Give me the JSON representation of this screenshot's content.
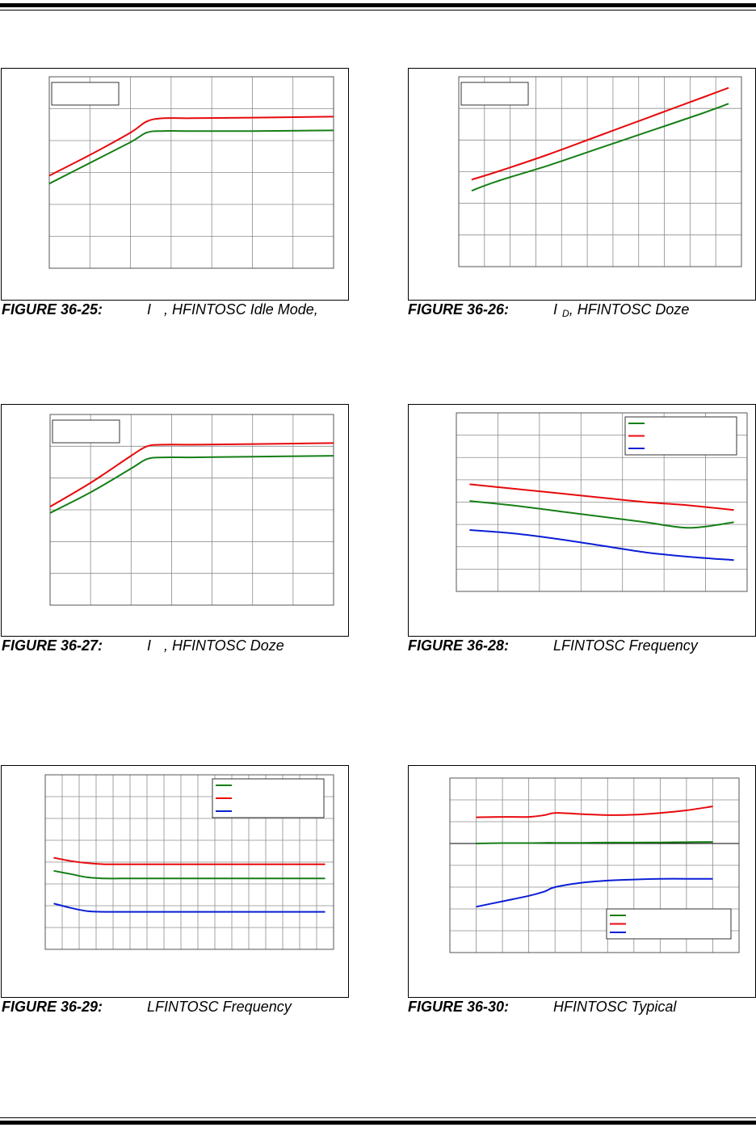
{
  "page": {
    "captions": [
      {
        "number": "FIGURE 36-25:",
        "pre": "I",
        "sub": "",
        "post": ", HFINTOSC Idle Mode,"
      },
      {
        "number": "FIGURE 36-26:",
        "pre": "I",
        "sub": "D",
        "post": ", HFINTOSC Doze"
      },
      {
        "number": "FIGURE 36-27:",
        "pre": "I",
        "sub": "",
        "post": ", HFINTOSC Doze"
      },
      {
        "number": "FIGURE 36-28:",
        "pre": "",
        "sub": "",
        "post": "LFINTOSC Frequency"
      },
      {
        "number": "FIGURE 36-29:",
        "pre": "",
        "sub": "",
        "post": "LFINTOSC Frequency"
      },
      {
        "number": "FIGURE 36-30:",
        "pre": "",
        "sub": "",
        "post": "HFINTOSC Typical"
      }
    ]
  },
  "colors": {
    "green": "#167f16",
    "red": "#e8090c",
    "blue": "#0a1ed6",
    "grid": "#8c8c8c"
  },
  "chart_data": [
    {
      "type": "line",
      "grid": true,
      "legend": "top-left",
      "legend_entries": [],
      "x": [
        0,
        1,
        2,
        2.4,
        2.8,
        3.5,
        5,
        7
      ],
      "xlim": [
        0,
        7
      ],
      "ylim": [
        0,
        6
      ],
      "x_divisions": 7,
      "y_divisions": 6,
      "series": [
        {
          "color": "red",
          "values": [
            2.9,
            3.55,
            4.25,
            4.6,
            4.7,
            4.7,
            4.72,
            4.75
          ]
        },
        {
          "color": "green",
          "values": [
            2.65,
            3.3,
            3.95,
            4.25,
            4.3,
            4.3,
            4.3,
            4.32
          ]
        }
      ]
    },
    {
      "type": "line",
      "grid": true,
      "legend": "top-left",
      "legend_entries": [],
      "x": [
        0,
        1,
        3,
        5,
        7,
        9,
        10
      ],
      "xlim": [
        -0.5,
        10.5
      ],
      "ylim": [
        0,
        6
      ],
      "x_divisions": 11,
      "y_divisions": 6,
      "series": [
        {
          "color": "red",
          "values": [
            2.75,
            3.0,
            3.55,
            4.15,
            4.75,
            5.35,
            5.65
          ]
        },
        {
          "color": "green",
          "values": [
            2.4,
            2.7,
            3.2,
            3.75,
            4.3,
            4.85,
            5.15
          ]
        }
      ]
    },
    {
      "type": "line",
      "grid": true,
      "legend": "top-left",
      "legend_entries": [],
      "x": [
        0,
        1,
        2,
        2.4,
        2.8,
        3.5,
        5,
        7
      ],
      "xlim": [
        0,
        7
      ],
      "ylim": [
        0,
        6
      ],
      "x_divisions": 7,
      "y_divisions": 6,
      "series": [
        {
          "color": "red",
          "values": [
            3.1,
            3.85,
            4.7,
            5.0,
            5.05,
            5.05,
            5.07,
            5.1
          ]
        },
        {
          "color": "green",
          "values": [
            2.9,
            3.55,
            4.3,
            4.6,
            4.65,
            4.65,
            4.67,
            4.7
          ]
        }
      ]
    },
    {
      "type": "line",
      "grid": true,
      "legend": "top-right",
      "legend_entries": [
        {
          "color": "green",
          "label": ""
        },
        {
          "color": "red",
          "label": ""
        },
        {
          "color": "blue",
          "label": ""
        }
      ],
      "x": [
        0,
        1,
        2,
        3,
        4,
        5,
        6
      ],
      "xlim": [
        -0.3,
        6.3
      ],
      "ylim": [
        0,
        8
      ],
      "x_divisions": 7,
      "y_divisions": 8,
      "series": [
        {
          "color": "green",
          "values": [
            4.05,
            3.85,
            3.6,
            3.35,
            3.1,
            2.85,
            3.1
          ]
        },
        {
          "color": "red",
          "values": [
            4.8,
            4.6,
            4.4,
            4.2,
            4.0,
            3.85,
            3.65
          ]
        },
        {
          "color": "blue",
          "values": [
            2.75,
            2.6,
            2.35,
            2.05,
            1.75,
            1.55,
            1.4
          ]
        }
      ]
    },
    {
      "type": "line",
      "grid": true,
      "legend": "top-right",
      "legend_entries": [
        {
          "color": "green",
          "label": ""
        },
        {
          "color": "red",
          "label": ""
        },
        {
          "color": "blue",
          "label": ""
        }
      ],
      "x": [
        0,
        1,
        2,
        3,
        4,
        6,
        8,
        10,
        12,
        14,
        16
      ],
      "xlim": [
        -0.5,
        16.5
      ],
      "ylim": [
        0,
        8
      ],
      "x_divisions": 17,
      "y_divisions": 8,
      "series": [
        {
          "color": "red",
          "values": [
            4.2,
            4.05,
            3.95,
            3.9,
            3.9,
            3.9,
            3.9,
            3.9,
            3.9,
            3.9,
            3.9
          ]
        },
        {
          "color": "green",
          "values": [
            3.6,
            3.45,
            3.3,
            3.25,
            3.25,
            3.25,
            3.25,
            3.25,
            3.25,
            3.25,
            3.25
          ]
        },
        {
          "color": "blue",
          "values": [
            2.1,
            1.9,
            1.75,
            1.72,
            1.72,
            1.72,
            1.72,
            1.72,
            1.72,
            1.72,
            1.72
          ]
        }
      ]
    },
    {
      "type": "line",
      "grid": true,
      "legend": "bottom-right",
      "legend_entries": [
        {
          "color": "green",
          "label": ""
        },
        {
          "color": "red",
          "label": ""
        },
        {
          "color": "blue",
          "label": ""
        }
      ],
      "x": [
        0,
        1,
        2,
        2.6,
        3,
        4,
        5,
        6,
        7,
        8,
        9
      ],
      "xlim": [
        -1,
        10
      ],
      "ylim": [
        0,
        8
      ],
      "x_divisions": 11,
      "y_divisions": 8,
      "series": [
        {
          "color": "red",
          "values": [
            6.2,
            6.22,
            6.22,
            6.3,
            6.4,
            6.35,
            6.3,
            6.32,
            6.4,
            6.52,
            6.7
          ]
        },
        {
          "color": "green",
          "values": [
            5.0,
            5.02,
            5.02,
            5.03,
            5.03,
            5.03,
            5.04,
            5.04,
            5.05,
            5.06,
            5.07
          ]
        },
        {
          "color": "blue",
          "values": [
            2.1,
            2.35,
            2.6,
            2.8,
            3.0,
            3.2,
            3.3,
            3.35,
            3.38,
            3.38,
            3.38
          ]
        }
      ]
    }
  ]
}
